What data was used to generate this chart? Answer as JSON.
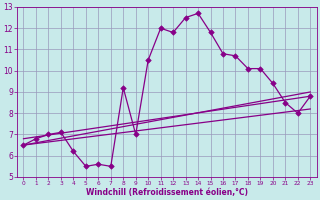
{
  "xlabel": "Windchill (Refroidissement éolien,°C)",
  "background_color": "#c8eaea",
  "grid_color": "#9999bb",
  "line_color": "#880088",
  "xlim": [
    -0.5,
    23.5
  ],
  "ylim": [
    5,
    13
  ],
  "xticks": [
    0,
    1,
    2,
    3,
    4,
    5,
    6,
    7,
    8,
    9,
    10,
    11,
    12,
    13,
    14,
    15,
    16,
    17,
    18,
    19,
    20,
    21,
    22,
    23
  ],
  "yticks": [
    5,
    6,
    7,
    8,
    9,
    10,
    11,
    12,
    13
  ],
  "line1_x": [
    0,
    1,
    2,
    3,
    4,
    5,
    6,
    7,
    8,
    9,
    10,
    11,
    12,
    13,
    14,
    15,
    16,
    17,
    18,
    19,
    20,
    21,
    22,
    23
  ],
  "line1_y": [
    6.5,
    6.8,
    7.0,
    7.1,
    6.2,
    5.5,
    5.6,
    5.5,
    9.2,
    7.0,
    10.5,
    12.0,
    11.8,
    12.5,
    12.7,
    11.8,
    10.8,
    10.7,
    10.1,
    10.1,
    9.4,
    8.5,
    8.0,
    8.8
  ],
  "line2_x": [
    0,
    23
  ],
  "line2_y": [
    6.5,
    9.0
  ],
  "line3_x": [
    0,
    23
  ],
  "line3_y": [
    6.8,
    8.8
  ],
  "line4_x": [
    0,
    23
  ],
  "line4_y": [
    6.5,
    8.2
  ]
}
